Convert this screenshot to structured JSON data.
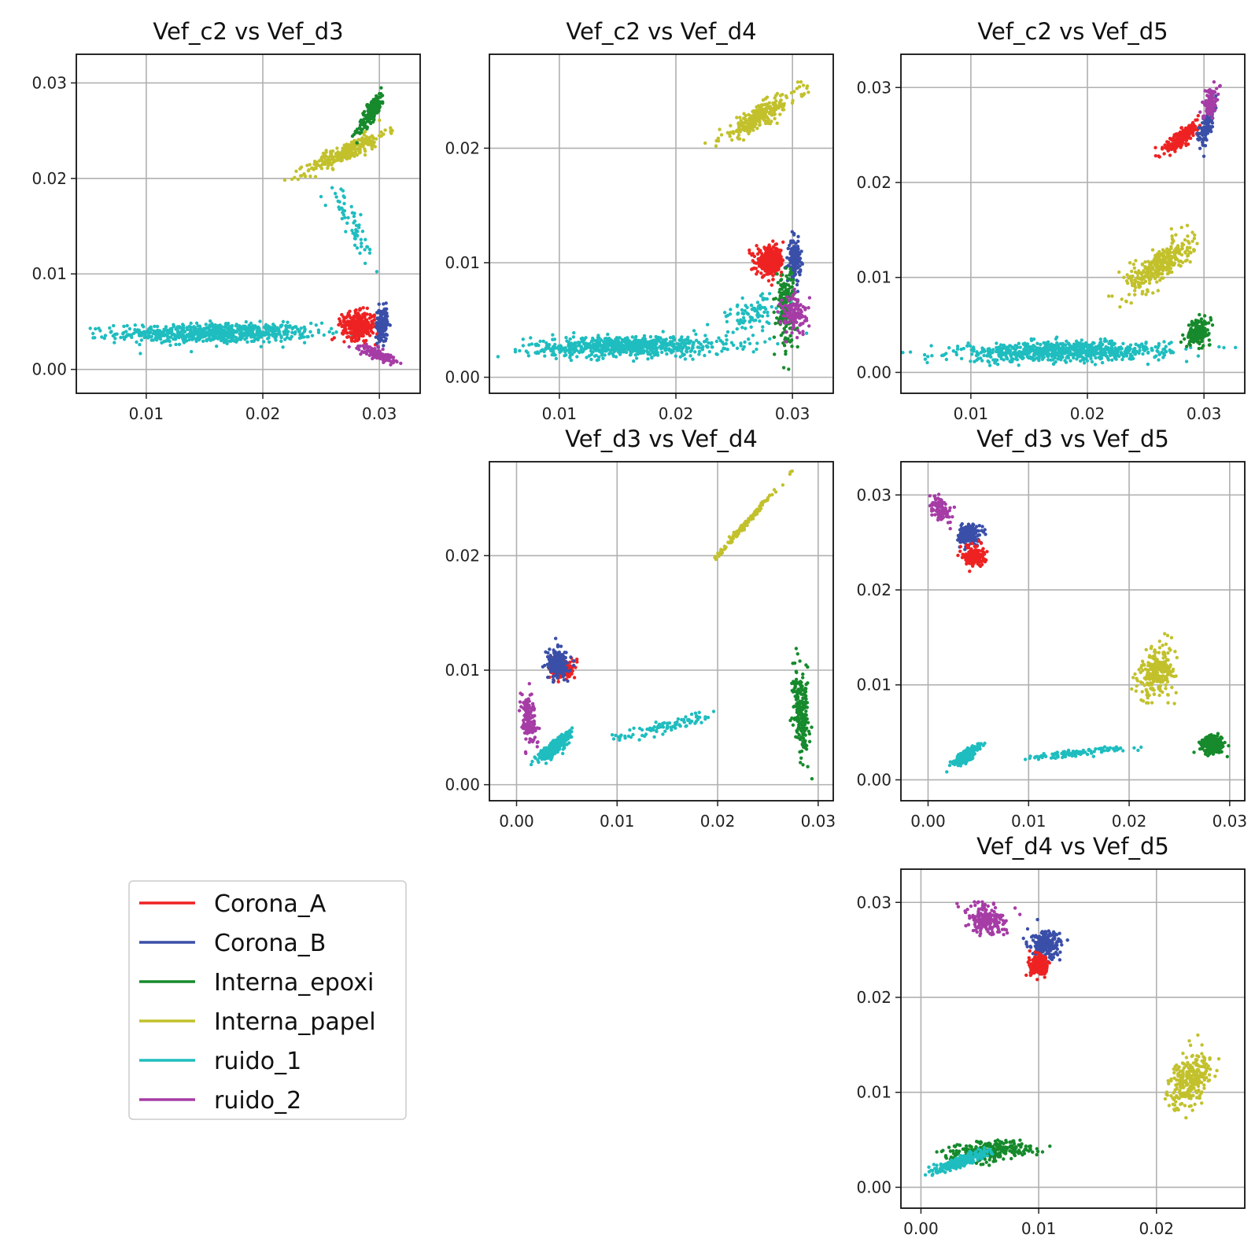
{
  "colors": {
    "Corona_A": "#ee2222",
    "Corona_B": "#3a4fa8",
    "Interna_epoxi": "#168a2c",
    "Interna_papel": "#c2c12c",
    "ruido_1": "#1fbdbf",
    "ruido_2": "#a63ca6"
  },
  "legend": {
    "entries": [
      "Corona_A",
      "Corona_B",
      "Interna_epoxi",
      "Interna_papel",
      "ruido_1",
      "ruido_2"
    ],
    "placement": "lower-left"
  },
  "chart_data": [
    {
      "type": "scatter",
      "title": "Vef_c2 vs Vef_d3",
      "xlim": [
        0.004,
        0.0335
      ],
      "ylim": [
        -0.0025,
        0.033
      ],
      "xticks": [
        "0.01",
        "0.02",
        "0.03"
      ],
      "yticks": [
        "0.00",
        "0.01",
        "0.02",
        "0.03"
      ],
      "grid": true,
      "series": [
        {
          "name": "ruido_1",
          "clusters": [
            {
              "cx": 0.016,
              "cy": 0.0038,
              "sx": 0.0042,
              "sy": 0.0005,
              "n": 700,
              "rho": 0.05
            },
            {
              "cx": 0.0275,
              "cy": 0.0155,
              "sx": 0.0012,
              "sy": 0.0025,
              "n": 60,
              "rho": -0.9
            }
          ]
        },
        {
          "name": "Interna_papel",
          "clusters": [
            {
              "cx": 0.0272,
              "cy": 0.0228,
              "sx": 0.0017,
              "sy": 0.0011,
              "n": 260,
              "rho": 0.9
            }
          ]
        },
        {
          "name": "Interna_epoxi",
          "clusters": [
            {
              "cx": 0.0293,
              "cy": 0.027,
              "sx": 0.0006,
              "sy": 0.0011,
              "n": 180,
              "rho": 0.85
            }
          ]
        },
        {
          "name": "Corona_A",
          "clusters": [
            {
              "cx": 0.0282,
              "cy": 0.0046,
              "sx": 0.0007,
              "sy": 0.0007,
              "n": 320,
              "rho": 0
            }
          ]
        },
        {
          "name": "Corona_B",
          "clusters": [
            {
              "cx": 0.0302,
              "cy": 0.0047,
              "sx": 0.00025,
              "sy": 0.0009,
              "n": 160,
              "rho": 0
            }
          ]
        },
        {
          "name": "ruido_2",
          "clusters": [
            {
              "cx": 0.0298,
              "cy": 0.0016,
              "sx": 0.0008,
              "sy": 0.0004,
              "n": 110,
              "rho": -0.7
            }
          ]
        }
      ]
    },
    {
      "type": "scatter",
      "title": "Vef_c2 vs Vef_d4",
      "xlim": [
        0.004,
        0.0335
      ],
      "ylim": [
        -0.0014,
        0.0282
      ],
      "xticks": [
        "0.01",
        "0.02",
        "0.03"
      ],
      "yticks": [
        "0.00",
        "0.01",
        "0.02"
      ],
      "grid": true,
      "series": [
        {
          "name": "ruido_1",
          "clusters": [
            {
              "cx": 0.016,
              "cy": 0.0027,
              "sx": 0.0042,
              "sy": 0.00045,
              "n": 700,
              "rho": 0.1
            },
            {
              "cx": 0.0265,
              "cy": 0.0055,
              "sx": 0.0015,
              "sy": 0.0008,
              "n": 90,
              "rho": 0.3
            }
          ]
        },
        {
          "name": "Interna_papel",
          "clusters": [
            {
              "cx": 0.0272,
              "cy": 0.0228,
              "sx": 0.0017,
              "sy": 0.0011,
              "n": 260,
              "rho": 0.9
            }
          ]
        },
        {
          "name": "Corona_A",
          "clusters": [
            {
              "cx": 0.0281,
              "cy": 0.0101,
              "sx": 0.0006,
              "sy": 0.0006,
              "n": 320,
              "rho": 0
            }
          ]
        },
        {
          "name": "Corona_B",
          "clusters": [
            {
              "cx": 0.0302,
              "cy": 0.0103,
              "sx": 0.00025,
              "sy": 0.0008,
              "n": 160,
              "rho": 0
            }
          ]
        },
        {
          "name": "Interna_epoxi",
          "clusters": [
            {
              "cx": 0.0294,
              "cy": 0.0062,
              "sx": 0.0004,
              "sy": 0.0017,
              "n": 180,
              "rho": 0
            }
          ]
        },
        {
          "name": "ruido_2",
          "clusters": [
            {
              "cx": 0.0302,
              "cy": 0.0055,
              "sx": 0.0006,
              "sy": 0.0009,
              "n": 120,
              "rho": 0
            }
          ]
        }
      ]
    },
    {
      "type": "scatter",
      "title": "Vef_c2 vs Vef_d5",
      "xlim": [
        0.004,
        0.0335
      ],
      "ylim": [
        -0.0022,
        0.0335
      ],
      "xticks": [
        "0.01",
        "0.02",
        "0.03"
      ],
      "yticks": [
        "0.00",
        "0.01",
        "0.02",
        "0.03"
      ],
      "grid": true,
      "series": [
        {
          "name": "ruido_1",
          "clusters": [
            {
              "cx": 0.018,
              "cy": 0.0022,
              "sx": 0.0045,
              "sy": 0.0005,
              "n": 750,
              "rho": 0.15
            }
          ]
        },
        {
          "name": "Interna_epoxi",
          "clusters": [
            {
              "cx": 0.0295,
              "cy": 0.0043,
              "sx": 0.0005,
              "sy": 0.0007,
              "n": 160,
              "rho": 0.3
            }
          ]
        },
        {
          "name": "Interna_papel",
          "clusters": [
            {
              "cx": 0.0262,
              "cy": 0.0113,
              "sx": 0.0014,
              "sy": 0.0014,
              "n": 320,
              "rho": 0.75
            }
          ]
        },
        {
          "name": "Corona_A",
          "clusters": [
            {
              "cx": 0.0281,
              "cy": 0.0247,
              "sx": 0.0007,
              "sy": 0.0008,
              "n": 220,
              "rho": 0.8
            }
          ]
        },
        {
          "name": "Corona_B",
          "clusters": [
            {
              "cx": 0.0302,
              "cy": 0.026,
              "sx": 0.0003,
              "sy": 0.001,
              "n": 130,
              "rho": 0.6
            }
          ]
        },
        {
          "name": "ruido_2",
          "clusters": [
            {
              "cx": 0.0305,
              "cy": 0.0285,
              "sx": 0.0003,
              "sy": 0.0008,
              "n": 110,
              "rho": 0.5
            }
          ]
        }
      ]
    },
    {
      "type": "scatter",
      "title": "Vef_d3 vs Vef_d4",
      "xlim": [
        -0.0027,
        0.0315
      ],
      "ylim": [
        -0.0014,
        0.0282
      ],
      "xticks": [
        "0.00",
        "0.01",
        "0.02",
        "0.03"
      ],
      "yticks": [
        "0.00",
        "0.01",
        "0.02"
      ],
      "grid": true,
      "series": [
        {
          "name": "ruido_2",
          "clusters": [
            {
              "cx": 0.0012,
              "cy": 0.0058,
              "sx": 0.0004,
              "sy": 0.0011,
              "n": 130,
              "rho": -0.3
            }
          ]
        },
        {
          "name": "ruido_1",
          "clusters": [
            {
              "cx": 0.0038,
              "cy": 0.0033,
              "sx": 0.0008,
              "sy": 0.0006,
              "n": 320,
              "rho": 0.85
            },
            {
              "cx": 0.0145,
              "cy": 0.005,
              "sx": 0.0025,
              "sy": 0.0006,
              "n": 90,
              "rho": 0.85
            }
          ]
        },
        {
          "name": "Corona_A",
          "clusters": [
            {
              "cx": 0.0046,
              "cy": 0.0101,
              "sx": 0.0006,
              "sy": 0.0004,
              "n": 200,
              "rho": 0
            }
          ]
        },
        {
          "name": "Corona_B",
          "clusters": [
            {
              "cx": 0.0041,
              "cy": 0.0105,
              "sx": 0.0005,
              "sy": 0.0006,
              "n": 220,
              "rho": 0
            }
          ]
        },
        {
          "name": "Interna_papel",
          "clusters": [
            {
              "cx": 0.0228,
              "cy": 0.0228,
              "sx": 0.0014,
              "sy": 0.0014,
              "n": 140,
              "rho": 0.995
            }
          ]
        },
        {
          "name": "Interna_epoxi",
          "clusters": [
            {
              "cx": 0.0283,
              "cy": 0.0062,
              "sx": 0.0004,
              "sy": 0.0017,
              "n": 220,
              "rho": -0.2
            }
          ]
        }
      ]
    },
    {
      "type": "scatter",
      "title": "Vef_d3 vs Vef_d5",
      "xlim": [
        -0.0027,
        0.0315
      ],
      "ylim": [
        -0.0022,
        0.0335
      ],
      "xticks": [
        "0.00",
        "0.01",
        "0.02",
        "0.03"
      ],
      "yticks": [
        "0.00",
        "0.01",
        "0.02",
        "0.03"
      ],
      "grid": true,
      "series": [
        {
          "name": "ruido_2",
          "clusters": [
            {
              "cx": 0.0012,
              "cy": 0.0285,
              "sx": 0.0005,
              "sy": 0.0008,
              "n": 110,
              "rho": -0.5
            }
          ]
        },
        {
          "name": "Corona_B",
          "clusters": [
            {
              "cx": 0.0041,
              "cy": 0.0258,
              "sx": 0.0005,
              "sy": 0.0005,
              "n": 200,
              "rho": 0
            }
          ]
        },
        {
          "name": "Corona_A",
          "clusters": [
            {
              "cx": 0.0046,
              "cy": 0.0236,
              "sx": 0.0005,
              "sy": 0.0005,
              "n": 200,
              "rho": 0
            }
          ]
        },
        {
          "name": "Interna_papel",
          "clusters": [
            {
              "cx": 0.0228,
              "cy": 0.0114,
              "sx": 0.0009,
              "sy": 0.0014,
              "n": 260,
              "rho": 0.3
            }
          ]
        },
        {
          "name": "Interna_epoxi",
          "clusters": [
            {
              "cx": 0.0283,
              "cy": 0.0037,
              "sx": 0.0006,
              "sy": 0.0005,
              "n": 200,
              "rho": 0
            }
          ]
        },
        {
          "name": "ruido_1",
          "clusters": [
            {
              "cx": 0.0038,
              "cy": 0.0026,
              "sx": 0.0006,
              "sy": 0.0005,
              "n": 280,
              "rho": 0.8
            },
            {
              "cx": 0.0145,
              "cy": 0.0028,
              "sx": 0.0025,
              "sy": 0.0003,
              "n": 100,
              "rho": 0.8
            }
          ]
        }
      ]
    },
    {
      "type": "scatter",
      "title": "Vef_d4 vs Vef_d5",
      "xlim": [
        -0.0017,
        0.0275
      ],
      "ylim": [
        -0.0022,
        0.0335
      ],
      "xticks": [
        "0.00",
        "0.01",
        "0.02"
      ],
      "yticks": [
        "0.00",
        "0.01",
        "0.02",
        "0.03"
      ],
      "grid": true,
      "series": [
        {
          "name": "ruido_2",
          "clusters": [
            {
              "cx": 0.0055,
              "cy": 0.0282,
              "sx": 0.0009,
              "sy": 0.0008,
              "n": 170,
              "rho": -0.3
            }
          ]
        },
        {
          "name": "Corona_B",
          "clusters": [
            {
              "cx": 0.0106,
              "cy": 0.0255,
              "sx": 0.0006,
              "sy": 0.0007,
              "n": 220,
              "rho": 0
            }
          ]
        },
        {
          "name": "Corona_A",
          "clusters": [
            {
              "cx": 0.0101,
              "cy": 0.0233,
              "sx": 0.0004,
              "sy": 0.0005,
              "n": 200,
              "rho": 0
            }
          ]
        },
        {
          "name": "Interna_papel",
          "clusters": [
            {
              "cx": 0.0228,
              "cy": 0.0114,
              "sx": 0.0009,
              "sy": 0.0014,
              "n": 280,
              "rho": 0.4
            }
          ]
        },
        {
          "name": "Interna_epoxi",
          "clusters": [
            {
              "cx": 0.0058,
              "cy": 0.0038,
              "sx": 0.0018,
              "sy": 0.0005,
              "n": 320,
              "rho": 0.3
            }
          ]
        },
        {
          "name": "ruido_1",
          "clusters": [
            {
              "cx": 0.0035,
              "cy": 0.0028,
              "sx": 0.001,
              "sy": 0.0005,
              "n": 320,
              "rho": 0.85
            }
          ]
        }
      ]
    }
  ]
}
